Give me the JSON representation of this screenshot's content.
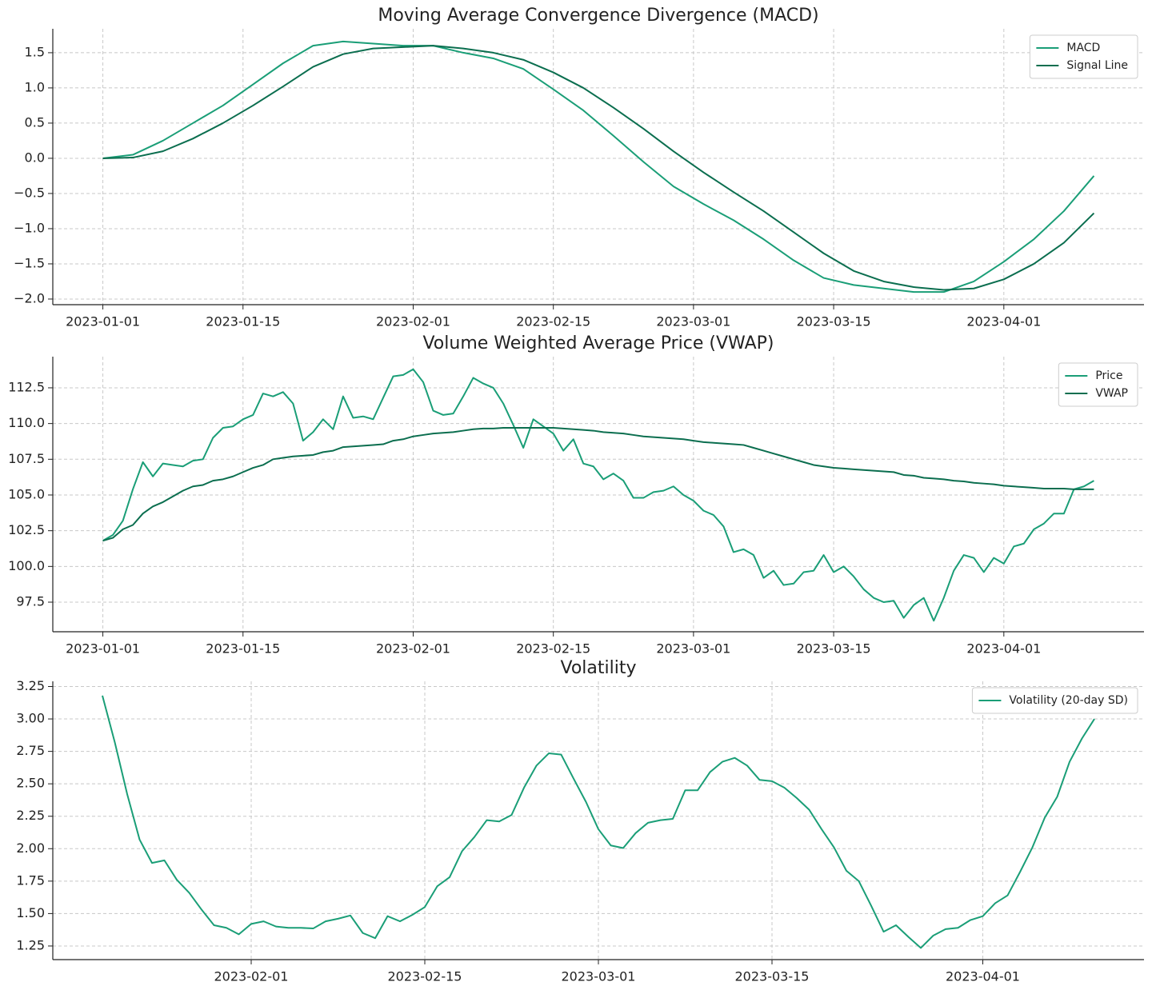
{
  "chart_data": [
    {
      "type": "line",
      "title": "Moving Average Convergence Divergence (MACD)",
      "x": [
        "2023-01-01",
        "2023-01-04",
        "2023-01-07",
        "2023-01-10",
        "2023-01-13",
        "2023-01-16",
        "2023-01-19",
        "2023-01-22",
        "2023-01-25",
        "2023-01-28",
        "2023-01-31",
        "2023-02-03",
        "2023-02-06",
        "2023-02-09",
        "2023-02-12",
        "2023-02-15",
        "2023-02-18",
        "2023-02-21",
        "2023-02-24",
        "2023-02-27",
        "2023-03-02",
        "2023-03-05",
        "2023-03-08",
        "2023-03-11",
        "2023-03-14",
        "2023-03-17",
        "2023-03-20",
        "2023-03-23",
        "2023-03-26",
        "2023-03-29",
        "2023-04-01",
        "2023-04-04",
        "2023-04-07",
        "2023-04-10"
      ],
      "series": [
        {
          "name": "MACD",
          "color": "#1a9e77",
          "values": [
            0,
            0.05,
            0.25,
            0.5,
            0.75,
            1.05,
            1.35,
            1.6,
            1.66,
            1.63,
            1.6,
            1.6,
            1.5,
            1.42,
            1.27,
            0.98,
            0.68,
            0.32,
            -0.05,
            -0.4,
            -0.65,
            -0.88,
            -1.15,
            -1.45,
            -1.7,
            -1.8,
            -1.85,
            -1.9,
            -1.9,
            -1.75,
            -1.47,
            -1.15,
            -0.75,
            -0.25
          ]
        },
        {
          "name": "Signal Line",
          "color": "#0b6e4f",
          "values": [
            0,
            0.01,
            0.1,
            0.28,
            0.5,
            0.75,
            1.02,
            1.3,
            1.48,
            1.56,
            1.58,
            1.6,
            1.56,
            1.5,
            1.4,
            1.22,
            1.0,
            0.72,
            0.42,
            0.1,
            -0.2,
            -0.48,
            -0.75,
            -1.05,
            -1.35,
            -1.6,
            -1.75,
            -1.83,
            -1.87,
            -1.85,
            -1.72,
            -1.5,
            -1.2,
            -0.78
          ]
        }
      ],
      "xlim": [
        "2022-12-27",
        "2023-04-15"
      ],
      "xticks": [
        "2023-01-01",
        "2023-01-15",
        "2023-02-01",
        "2023-02-15",
        "2023-03-01",
        "2023-03-15",
        "2023-04-01"
      ],
      "ylim": [
        -2.08,
        1.84
      ],
      "yticks": [
        {
          "value": -2,
          "label": "−2.0"
        },
        {
          "value": -1.5,
          "label": "−1.5"
        },
        {
          "value": -1,
          "label": "−1.0"
        },
        {
          "value": -0.5,
          "label": "−0.5"
        },
        {
          "value": 0,
          "label": "0.0"
        },
        0.5,
        {
          "value": 1,
          "label": "1.0"
        },
        1.5
      ],
      "grid": true,
      "legend": "upper right"
    },
    {
      "type": "line",
      "title": "Volume Weighted Average Price (VWAP)",
      "x": [
        "2023-01-01",
        "2023-01-02",
        "2023-01-03",
        "2023-01-04",
        "2023-01-05",
        "2023-01-06",
        "2023-01-07",
        "2023-01-08",
        "2023-01-09",
        "2023-01-10",
        "2023-01-11",
        "2023-01-12",
        "2023-01-13",
        "2023-01-14",
        "2023-01-15",
        "2023-01-16",
        "2023-01-17",
        "2023-01-18",
        "2023-01-19",
        "2023-01-20",
        "2023-01-21",
        "2023-01-22",
        "2023-01-23",
        "2023-01-24",
        "2023-01-25",
        "2023-01-26",
        "2023-01-27",
        "2023-01-28",
        "2023-01-29",
        "2023-01-30",
        "2023-01-31",
        "2023-02-01",
        "2023-02-02",
        "2023-02-03",
        "2023-02-04",
        "2023-02-05",
        "2023-02-06",
        "2023-02-07",
        "2023-02-08",
        "2023-02-09",
        "2023-02-10",
        "2023-02-11",
        "2023-02-12",
        "2023-02-13",
        "2023-02-14",
        "2023-02-15",
        "2023-02-16",
        "2023-02-17",
        "2023-02-18",
        "2023-02-19",
        "2023-02-20",
        "2023-02-21",
        "2023-02-22",
        "2023-02-23",
        "2023-02-24",
        "2023-02-25",
        "2023-02-26",
        "2023-02-27",
        "2023-02-28",
        "2023-03-01",
        "2023-03-02",
        "2023-03-03",
        "2023-03-04",
        "2023-03-05",
        "2023-03-06",
        "2023-03-07",
        "2023-03-08",
        "2023-03-09",
        "2023-03-10",
        "2023-03-11",
        "2023-03-12",
        "2023-03-13",
        "2023-03-14",
        "2023-03-15",
        "2023-03-16",
        "2023-03-17",
        "2023-03-18",
        "2023-03-19",
        "2023-03-20",
        "2023-03-21",
        "2023-03-22",
        "2023-03-23",
        "2023-03-24",
        "2023-03-25",
        "2023-03-26",
        "2023-03-27",
        "2023-03-28",
        "2023-03-29",
        "2023-03-30",
        "2023-03-31",
        "2023-04-01",
        "2023-04-02",
        "2023-04-03",
        "2023-04-04",
        "2023-04-05",
        "2023-04-06",
        "2023-04-07",
        "2023-04-08",
        "2023-04-09",
        "2023-04-10"
      ],
      "series": [
        {
          "name": "Price",
          "color": "#1a9e77",
          "values": [
            101.8,
            102.2,
            103.2,
            105.4,
            107.3,
            106.3,
            107.2,
            107.1,
            107.0,
            107.4,
            107.5,
            109.0,
            109.7,
            109.8,
            110.3,
            110.6,
            112.1,
            111.9,
            112.2,
            111.4,
            108.8,
            109.4,
            110.3,
            109.6,
            111.9,
            110.4,
            110.5,
            110.3,
            111.8,
            113.3,
            113.4,
            113.8,
            112.9,
            110.9,
            110.6,
            110.7,
            111.9,
            113.2,
            112.8,
            112.5,
            111.4,
            109.9,
            108.3,
            110.3,
            109.8,
            109.3,
            108.1,
            108.9,
            107.2,
            107.0,
            106.1,
            106.5,
            106.0,
            104.8,
            104.8,
            105.2,
            105.3,
            105.6,
            105.0,
            104.6,
            103.9,
            103.6,
            102.8,
            101.0,
            101.2,
            100.8,
            99.2,
            99.7,
            98.7,
            98.8,
            99.6,
            99.7,
            100.8,
            99.6,
            100.0,
            99.3,
            98.4,
            97.8,
            97.5,
            97.6,
            96.4,
            97.3,
            97.8,
            96.2,
            97.8,
            99.7,
            100.8,
            100.6,
            99.6,
            100.6,
            100.2,
            101.4,
            101.6,
            102.6,
            103.0,
            103.7,
            103.7,
            105.4,
            105.6,
            106.0
          ]
        },
        {
          "name": "VWAP",
          "color": "#0b6e4f",
          "values": [
            101.8,
            102.0,
            102.6,
            102.9,
            103.7,
            104.2,
            104.5,
            104.9,
            105.3,
            105.6,
            105.7,
            106.0,
            106.1,
            106.3,
            106.6,
            106.9,
            107.1,
            107.5,
            107.6,
            107.7,
            107.75,
            107.8,
            108.0,
            108.1,
            108.35,
            108.4,
            108.45,
            108.5,
            108.55,
            108.8,
            108.9,
            109.1,
            109.2,
            109.3,
            109.35,
            109.4,
            109.5,
            109.6,
            109.65,
            109.65,
            109.7,
            109.7,
            109.7,
            109.7,
            109.7,
            109.7,
            109.65,
            109.6,
            109.55,
            109.5,
            109.4,
            109.35,
            109.3,
            109.2,
            109.1,
            109.05,
            109.0,
            108.95,
            108.9,
            108.8,
            108.7,
            108.65,
            108.6,
            108.55,
            108.5,
            108.3,
            108.1,
            107.9,
            107.7,
            107.5,
            107.3,
            107.1,
            107.0,
            106.9,
            106.85,
            106.8,
            106.75,
            106.7,
            106.65,
            106.6,
            106.4,
            106.35,
            106.2,
            106.15,
            106.1,
            106.0,
            105.95,
            105.85,
            105.8,
            105.75,
            105.65,
            105.6,
            105.55,
            105.5,
            105.45,
            105.45,
            105.45,
            105.4,
            105.4,
            105.4
          ]
        }
      ],
      "xlim": [
        "2022-12-27",
        "2023-04-15"
      ],
      "xticks": [
        "2023-01-01",
        "2023-01-15",
        "2023-02-01",
        "2023-02-15",
        "2023-03-01",
        "2023-03-15",
        "2023-04-01"
      ],
      "ylim": [
        95.43,
        114.68
      ],
      "yticks": [
        97.5,
        {
          "value": 100,
          "label": "100.0"
        },
        102.5,
        {
          "value": 105,
          "label": "105.0"
        },
        107.5,
        {
          "value": 110,
          "label": "110.0"
        },
        112.5
      ],
      "grid": true,
      "legend": "upper right"
    },
    {
      "type": "line",
      "title": "Volatility",
      "x": [
        "2023-01-20",
        "2023-01-21",
        "2023-01-22",
        "2023-01-23",
        "2023-01-24",
        "2023-01-25",
        "2023-01-26",
        "2023-01-27",
        "2023-01-28",
        "2023-01-29",
        "2023-01-30",
        "2023-01-31",
        "2023-02-01",
        "2023-02-02",
        "2023-02-03",
        "2023-02-04",
        "2023-02-05",
        "2023-02-06",
        "2023-02-07",
        "2023-02-08",
        "2023-02-09",
        "2023-02-10",
        "2023-02-11",
        "2023-02-12",
        "2023-02-13",
        "2023-02-14",
        "2023-02-15",
        "2023-02-16",
        "2023-02-17",
        "2023-02-18",
        "2023-02-19",
        "2023-02-20",
        "2023-02-21",
        "2023-02-22",
        "2023-02-23",
        "2023-02-24",
        "2023-02-25",
        "2023-02-26",
        "2023-02-27",
        "2023-02-28",
        "2023-03-01",
        "2023-03-02",
        "2023-03-03",
        "2023-03-04",
        "2023-03-05",
        "2023-03-06",
        "2023-03-07",
        "2023-03-08",
        "2023-03-09",
        "2023-03-10",
        "2023-03-11",
        "2023-03-12",
        "2023-03-13",
        "2023-03-14",
        "2023-03-15",
        "2023-03-16",
        "2023-03-17",
        "2023-03-18",
        "2023-03-19",
        "2023-03-20",
        "2023-03-21",
        "2023-03-22",
        "2023-03-23",
        "2023-03-24",
        "2023-03-25",
        "2023-03-26",
        "2023-03-27",
        "2023-03-28",
        "2023-03-29",
        "2023-03-30",
        "2023-03-31",
        "2023-04-01",
        "2023-04-02",
        "2023-04-03",
        "2023-04-04",
        "2023-04-05",
        "2023-04-06",
        "2023-04-07",
        "2023-04-08",
        "2023-04-09",
        "2023-04-10"
      ],
      "series": [
        {
          "name": "Volatility (20-day SD)",
          "color": "#1a9e77",
          "values": [
            3.18,
            2.82,
            2.42,
            2.07,
            1.89,
            1.91,
            1.76,
            1.66,
            1.53,
            1.41,
            1.39,
            1.34,
            1.42,
            1.44,
            1.4,
            1.39,
            1.39,
            1.385,
            1.44,
            1.46,
            1.485,
            1.35,
            1.31,
            1.48,
            1.44,
            1.49,
            1.55,
            1.71,
            1.78,
            1.98,
            2.09,
            2.22,
            2.21,
            2.26,
            2.47,
            2.64,
            2.735,
            2.725,
            2.54,
            2.36,
            2.15,
            2.025,
            2.005,
            2.12,
            2.2,
            2.22,
            2.23,
            2.45,
            2.45,
            2.59,
            2.67,
            2.7,
            2.64,
            2.53,
            2.52,
            2.47,
            2.39,
            2.3,
            2.15,
            2.01,
            1.83,
            1.75,
            1.56,
            1.36,
            1.41,
            1.32,
            1.235,
            1.33,
            1.38,
            1.39,
            1.45,
            1.48,
            1.58,
            1.64,
            1.82,
            2.01,
            2.24,
            2.4,
            2.67,
            2.85,
            3.0
          ]
        }
      ],
      "xlim": [
        "2023-01-16",
        "2023-04-14"
      ],
      "xticks": [
        "2023-02-01",
        "2023-02-15",
        "2023-03-01",
        "2023-03-15",
        "2023-04-01"
      ],
      "ylim": [
        1.145,
        3.29
      ],
      "yticks": [
        1.25,
        {
          "value": 1.5,
          "label": "1.50"
        },
        1.75,
        {
          "value": 2,
          "label": "2.00"
        },
        2.25,
        {
          "value": 2.5,
          "label": "2.50"
        },
        2.75,
        {
          "value": 3,
          "label": "3.00"
        },
        3.25
      ],
      "grid": true,
      "legend": "upper right"
    }
  ]
}
